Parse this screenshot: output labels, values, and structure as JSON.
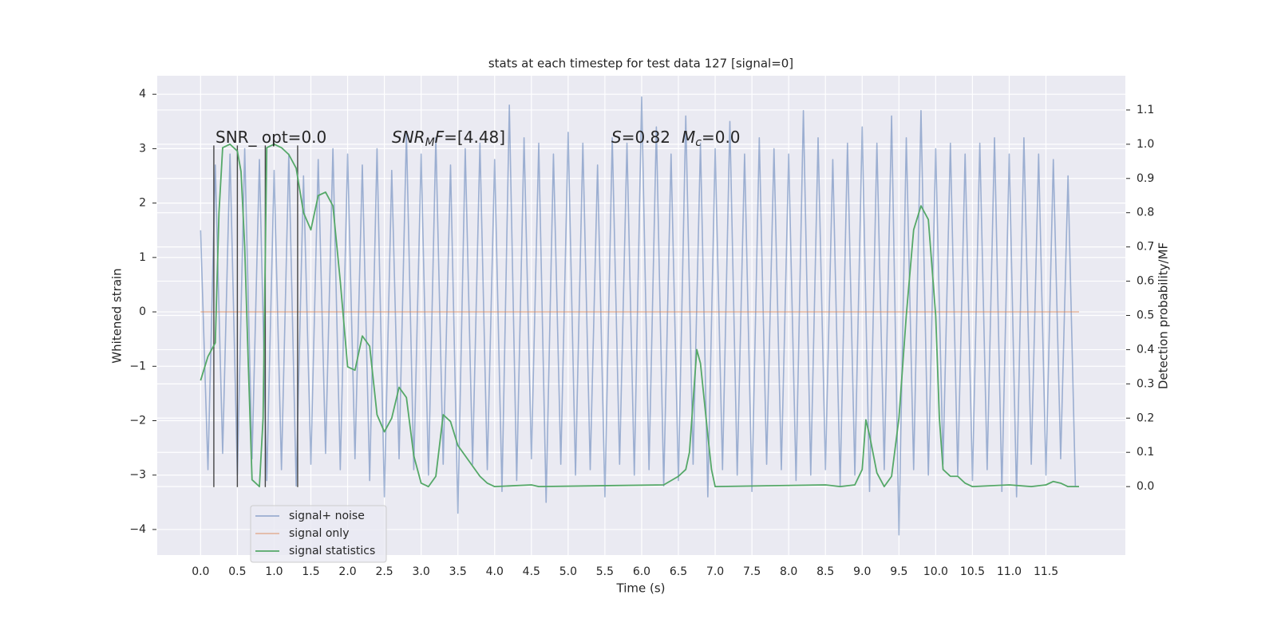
{
  "chart_data": {
    "type": "line",
    "title": "stats at each timestep for test data 127 [signal=0]",
    "xlabel": "Time (s)",
    "ylabel": "Whitened strain",
    "y2label": "Detection probability/MF",
    "xlim": [
      -0.59,
      12.58
    ],
    "ylim": [
      -4.47,
      4.34
    ],
    "y2lim": [
      -0.2,
      1.2
    ],
    "xticks": [
      {
        "value": 0,
        "label": "0.0"
      },
      0.5,
      {
        "value": 1,
        "label": "1.0"
      },
      1.5,
      {
        "value": 2,
        "label": "2.0"
      },
      2.5,
      {
        "value": 3,
        "label": "3.0"
      },
      3.5,
      {
        "value": 4,
        "label": "4.0"
      },
      4.5,
      {
        "value": 5,
        "label": "5.0"
      },
      5.5,
      {
        "value": 6,
        "label": "6.0"
      },
      6.5,
      {
        "value": 7,
        "label": "7.0"
      },
      7.5,
      {
        "value": 8,
        "label": "8.0"
      },
      8.5,
      {
        "value": 9,
        "label": "9.0"
      },
      9.5,
      {
        "value": 10,
        "label": "10.0"
      },
      10.5,
      {
        "value": 11,
        "label": "11.0"
      },
      11.5
    ],
    "yticks": [
      {
        "value": -4,
        "label": "−4"
      },
      {
        "value": -3,
        "label": "−3"
      },
      {
        "value": -2,
        "label": "−2"
      },
      {
        "value": -1,
        "label": "−1"
      },
      0,
      1,
      2,
      3,
      4
    ],
    "y2ticks": [
      {
        "value": 0,
        "label": "0.0"
      },
      0.1,
      0.2,
      0.3,
      0.4,
      0.5,
      0.6,
      0.7,
      0.8,
      0.9,
      {
        "value": 1,
        "label": "1.0"
      },
      1.1
    ],
    "grid": true,
    "legend": "lower left",
    "series": [
      {
        "name": "signal+ noise",
        "color": "#4c72b0",
        "x": [
          0,
          0.1,
          0.2,
          0.3,
          0.4,
          0.5,
          0.6,
          0.7,
          0.8,
          0.9,
          1,
          1.1,
          1.2,
          1.3,
          1.4,
          1.5,
          1.6,
          1.7,
          1.8,
          1.9,
          2,
          2.1,
          2.2,
          2.3,
          2.4,
          2.5,
          2.6,
          2.7,
          2.8,
          2.9,
          3,
          3.1,
          3.2,
          3.3,
          3.4,
          3.5,
          3.6,
          3.7,
          3.8,
          3.9,
          4,
          4.1,
          4.2,
          4.3,
          4.4,
          4.5,
          4.6,
          4.7,
          4.8,
          4.9,
          5,
          5.1,
          5.2,
          5.3,
          5.4,
          5.5,
          5.6,
          5.7,
          5.8,
          5.9,
          6,
          6.1,
          6.2,
          6.3,
          6.4,
          6.5,
          6.6,
          6.7,
          6.8,
          6.9,
          7,
          7.1,
          7.2,
          7.3,
          7.4,
          7.5,
          7.6,
          7.7,
          7.8,
          7.9,
          8,
          8.1,
          8.2,
          8.3,
          8.4,
          8.5,
          8.6,
          8.7,
          8.8,
          8.9,
          9,
          9.1,
          9.2,
          9.3,
          9.4,
          9.5,
          9.6,
          9.7,
          9.8,
          9.9,
          10,
          10.1,
          10.2,
          10.3,
          10.4,
          10.5,
          10.6,
          10.7,
          10.8,
          10.9,
          11,
          11.1,
          11.2,
          11.3,
          11.4,
          11.5,
          11.6,
          11.7,
          11.8,
          11.9
        ],
        "values": [
          1.5,
          -2.9,
          2.7,
          -2.6,
          2.9,
          -3.0,
          3.0,
          -2.7,
          2.8,
          -3.1,
          2.6,
          -2.9,
          2.9,
          -3.2,
          2.5,
          -2.8,
          2.8,
          -2.6,
          3.0,
          -2.9,
          2.9,
          -2.7,
          2.7,
          -3.1,
          3.0,
          -3.4,
          2.6,
          -2.7,
          3.3,
          -2.9,
          2.9,
          -3.0,
          3.2,
          -2.8,
          2.7,
          -3.7,
          3.0,
          -2.8,
          3.1,
          -2.9,
          2.8,
          -3.3,
          3.8,
          -3.1,
          3.2,
          -2.7,
          3.1,
          -3.5,
          2.9,
          -2.8,
          3.3,
          -3.0,
          3.1,
          -2.9,
          2.7,
          -3.4,
          3.2,
          -2.8,
          3.1,
          -3.0,
          3.95,
          -2.9,
          3.4,
          -3.2,
          2.9,
          -3.1,
          3.6,
          -2.8,
          3.1,
          -3.4,
          3.0,
          -2.9,
          3.5,
          -3.0,
          2.9,
          -3.3,
          3.2,
          -2.8,
          3.0,
          -2.9,
          2.9,
          -3.1,
          3.7,
          -3.0,
          3.2,
          -2.9,
          2.8,
          -3.2,
          3.1,
          -3.0,
          3.4,
          -3.3,
          3.1,
          -2.9,
          3.6,
          -4.1,
          3.2,
          -2.9,
          3.7,
          -3.0,
          3.0,
          -2.8,
          3.1,
          -3.0,
          2.9,
          -3.1,
          3.1,
          -2.9,
          3.2,
          -3.3,
          2.9,
          -3.4,
          3.2,
          -2.8,
          2.9,
          -3.0,
          2.8,
          -2.7,
          2.5,
          -3.2
        ]
      },
      {
        "name": "signal only",
        "color": "#dd8452",
        "x": [
          0,
          11.95
        ],
        "values": [
          0,
          0
        ]
      },
      {
        "name": "signal statistics",
        "color": "#55a868",
        "axis": "y2",
        "x": [
          0,
          0.1,
          0.2,
          0.25,
          0.3,
          0.4,
          0.5,
          0.55,
          0.6,
          0.65,
          0.7,
          0.8,
          0.85,
          0.9,
          1.0,
          1.1,
          1.2,
          1.3,
          1.4,
          1.5,
          1.6,
          1.7,
          1.8,
          1.9,
          2.0,
          2.1,
          2.2,
          2.3,
          2.4,
          2.5,
          2.6,
          2.7,
          2.8,
          2.9,
          3.0,
          3.1,
          3.2,
          3.3,
          3.4,
          3.5,
          3.6,
          3.7,
          3.8,
          3.9,
          4.0,
          4.5,
          4.6,
          6.3,
          6.5,
          6.6,
          6.65,
          6.7,
          6.75,
          6.8,
          6.9,
          6.95,
          7.0,
          8.5,
          8.7,
          8.9,
          9.0,
          9.05,
          9.1,
          9.2,
          9.3,
          9.4,
          9.5,
          9.6,
          9.7,
          9.8,
          9.9,
          10.0,
          10.05,
          10.1,
          10.2,
          10.3,
          10.4,
          10.5,
          11.0,
          11.3,
          11.5,
          11.6,
          11.7,
          11.8,
          11.95
        ],
        "values": [
          0.31,
          0.38,
          0.42,
          0.8,
          0.99,
          1.0,
          0.98,
          0.92,
          0.7,
          0.35,
          0.02,
          0.0,
          0.2,
          0.99,
          1.0,
          0.99,
          0.97,
          0.93,
          0.8,
          0.75,
          0.85,
          0.86,
          0.82,
          0.6,
          0.35,
          0.34,
          0.44,
          0.41,
          0.21,
          0.16,
          0.2,
          0.29,
          0.26,
          0.09,
          0.01,
          0.0,
          0.03,
          0.21,
          0.19,
          0.12,
          0.09,
          0.06,
          0.03,
          0.01,
          0.0,
          0.005,
          0.0,
          0.005,
          0.03,
          0.05,
          0.1,
          0.25,
          0.4,
          0.36,
          0.15,
          0.05,
          0.0,
          0.005,
          0.0,
          0.005,
          0.05,
          0.195,
          0.15,
          0.04,
          0.0,
          0.03,
          0.2,
          0.5,
          0.75,
          0.82,
          0.78,
          0.5,
          0.2,
          0.05,
          0.03,
          0.03,
          0.01,
          0.0,
          0.005,
          0.0,
          0.005,
          0.015,
          0.01,
          0.0,
          0.0
        ]
      }
    ],
    "vlines": {
      "x": [
        0.18,
        0.5,
        0.88,
        1.32
      ],
      "ymin": -3.22,
      "ymax": 3.06,
      "color": "#444444"
    },
    "annotations": [
      {
        "parts": [
          "SNR_ opt=0.0"
        ]
      },
      {
        "parts": [
          "SNR",
          "M",
          "F",
          "=[4.48]"
        ]
      },
      {
        "parts": [
          "S",
          "=0.82",
          "M",
          "c",
          "=0.0"
        ]
      }
    ]
  }
}
